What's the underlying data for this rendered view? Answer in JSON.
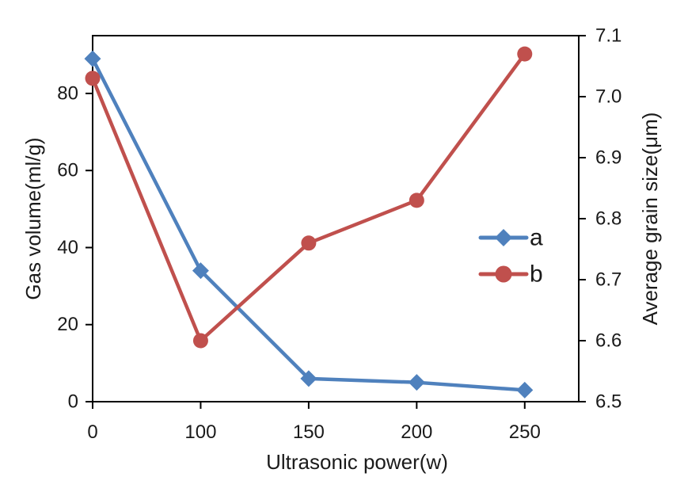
{
  "chart_data": {
    "type": "line",
    "title": "",
    "xlabel": "Ultrasonic power(w)",
    "ylabel_left": "Gas volume(ml/g)",
    "ylabel_right": "Average grain size(μm)",
    "x_tick_labels": [
      "0",
      "100",
      "150",
      "200",
      "250"
    ],
    "left_axis": {
      "min": 0,
      "max": 95,
      "tick_labels": [
        "0",
        "20",
        "40",
        "60",
        "80"
      ]
    },
    "right_axis": {
      "min": 6.5,
      "max": 7.1,
      "tick_labels": [
        "6.5",
        "6.6",
        "6.7",
        "6.8",
        "6.9",
        "7.0",
        "7.1"
      ]
    },
    "series": [
      {
        "name": "a",
        "axis": "left",
        "marker": "diamond",
        "color": "#4F81BD",
        "values": [
          89,
          34,
          6,
          5,
          3
        ]
      },
      {
        "name": "b",
        "axis": "right",
        "marker": "circle",
        "color": "#C0504D",
        "values": [
          7.03,
          6.6,
          6.76,
          6.83,
          7.07
        ]
      }
    ],
    "legend": {
      "labels": [
        "a",
        "b"
      ],
      "position": "inside-right"
    },
    "grid": false,
    "axis_color": "#000000",
    "text_color": "#1a1a1a",
    "background": "#ffffff"
  }
}
